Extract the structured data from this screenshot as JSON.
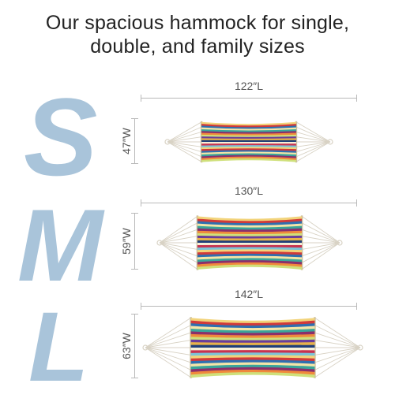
{
  "headline": {
    "line1": "Our spacious hammock for single,",
    "line2": "double, and family sizes"
  },
  "colors": {
    "letter": "#a9c4da",
    "dimension_line": "#b9b9b9",
    "rope": "#d8d2c4",
    "stripes": [
      "#f2d37a",
      "#d13a3a",
      "#2f6fb0",
      "#f4e5a8",
      "#3aa59a",
      "#8b2f6b",
      "#f08a3c",
      "#cfe07a",
      "#6a3d9a",
      "#e8b24a",
      "#1f3f7a",
      "#f6efd8",
      "#c8324f",
      "#7cc3d8"
    ]
  },
  "sizes": [
    {
      "letter": "S",
      "length": "122″L",
      "width": "47″W"
    },
    {
      "letter": "M",
      "length": "130″L",
      "width": "59″W"
    },
    {
      "letter": "L",
      "length": "142″L",
      "width": "63″W"
    }
  ]
}
